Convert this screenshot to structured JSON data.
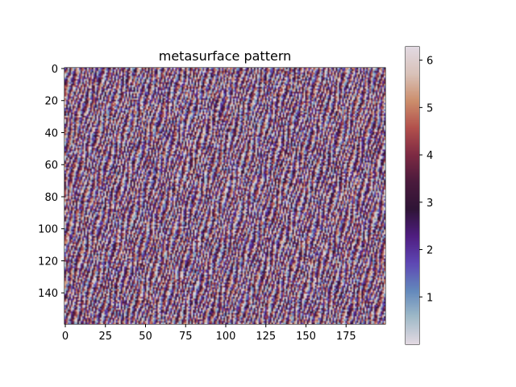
{
  "chart_data": {
    "type": "heatmap",
    "title": "metasurface pattern",
    "xlabel": "",
    "ylabel": "",
    "grid": [
      200,
      160
    ],
    "xlim": [
      -0.5,
      199.5
    ],
    "ylim": [
      159.5,
      -0.5
    ],
    "y_axis_inverted": true,
    "x_ticks": [
      0,
      25,
      50,
      75,
      100,
      125,
      150,
      175
    ],
    "x_tick_labels": [
      "0",
      "25",
      "50",
      "75",
      "100",
      "125",
      "150",
      "175"
    ],
    "y_ticks": [
      0,
      20,
      40,
      60,
      80,
      100,
      120,
      140
    ],
    "y_tick_labels": [
      "0",
      "20",
      "40",
      "60",
      "80",
      "100",
      "120",
      "140"
    ],
    "value_range": [
      0,
      6.283
    ],
    "colormap": "twilight",
    "colormap_stops": [
      "#e2d9e2",
      "#9fbac8",
      "#6287bb",
      "#5e47b4",
      "#4f1d80",
      "#2f1436",
      "#4a1a3c",
      "#7d2a43",
      "#b2504c",
      "#cc8e6c",
      "#d9c2b9",
      "#e2d9e2"
    ],
    "colorbar": {
      "position": "right",
      "ticks": [
        1,
        2,
        3,
        4,
        5,
        6
      ],
      "tick_labels": [
        "1",
        "2",
        "3",
        "4",
        "5",
        "6"
      ]
    }
  }
}
